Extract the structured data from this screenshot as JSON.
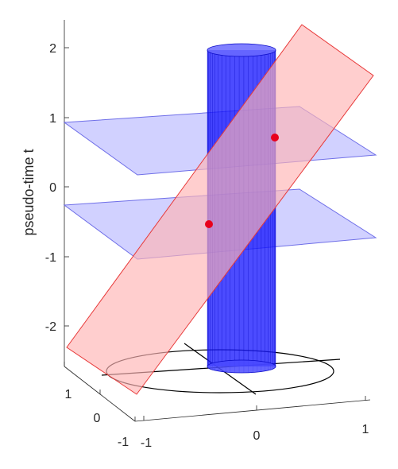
{
  "axes": {
    "z_label": "pseudo-time t",
    "z_ticks": [
      "2",
      "1",
      "0",
      "-1",
      "-2"
    ],
    "x_ticks": [
      "-1",
      "0",
      "1"
    ],
    "y_ticks": [
      "1",
      "0",
      "-1"
    ]
  },
  "colors": {
    "cylinder": "#1a1aff",
    "planes": "#b3b3ff",
    "slanted_plane": "#ffb3b3",
    "points": "#e8001c",
    "ground_lines": "#000000"
  }
}
